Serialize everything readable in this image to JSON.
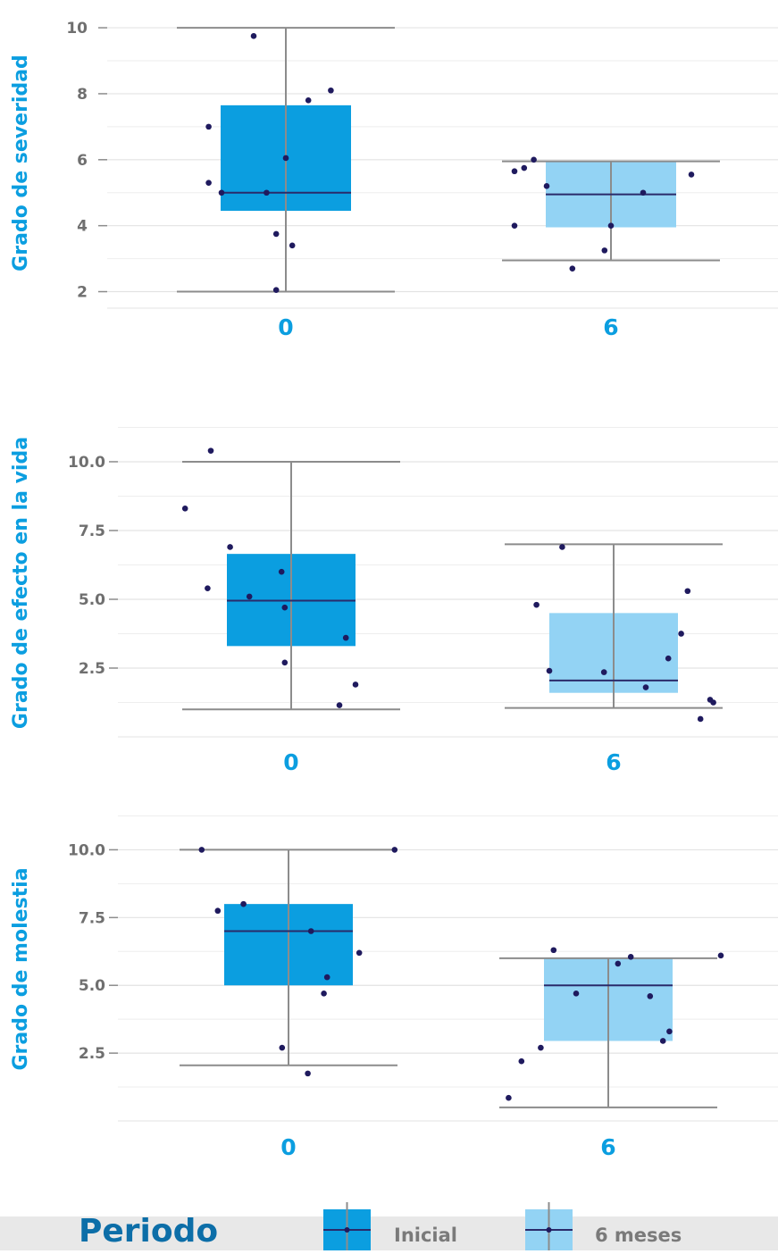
{
  "colors": {
    "inicial": "#0b9ee0",
    "seis_meses": "#93d3f4",
    "dot": "#1f1a5e",
    "median": "#2a2a6a",
    "whisker": "#8c8c8c",
    "grid": "#e3e3e3",
    "axis_label": "#0b9ee0",
    "legend_bar": "#e8e8e8",
    "legend_title": "#0c6ea8"
  },
  "chart_data": [
    {
      "type": "box",
      "ylabel": "Grado de severidad",
      "ylim": [
        1.5,
        10.3
      ],
      "yticks": [
        2,
        4,
        6,
        8,
        10
      ],
      "ytick_labels": [
        "2",
        "4",
        "6",
        "8",
        "10"
      ],
      "minor_ticks": [
        3,
        5,
        7,
        9
      ],
      "categories": [
        "0",
        "6"
      ],
      "boxes": [
        {
          "period": "Inicial",
          "q1": 4.45,
          "median": 5.0,
          "q3": 7.65,
          "whisker_low": 2.0,
          "whisker_high": 10.0,
          "points": [
            [
              -0.24,
              7.0
            ],
            [
              -0.24,
              5.3
            ],
            [
              -0.2,
              5.0
            ],
            [
              -0.1,
              9.75
            ],
            [
              -0.06,
              5.0
            ],
            [
              -0.03,
              3.75
            ],
            [
              0.0,
              6.05
            ],
            [
              0.02,
              3.4
            ],
            [
              -0.03,
              2.05
            ],
            [
              0.07,
              7.8
            ],
            [
              0.14,
              8.1
            ]
          ]
        },
        {
          "period": "6 meses",
          "q1": 3.95,
          "median": 4.95,
          "q3": 5.95,
          "whisker_low": 2.95,
          "whisker_high": 5.95,
          "points": [
            [
              -0.3,
              5.65
            ],
            [
              -0.3,
              4.0
            ],
            [
              -0.27,
              5.75
            ],
            [
              -0.24,
              6.0
            ],
            [
              -0.2,
              5.2
            ],
            [
              -0.12,
              2.7
            ],
            [
              -0.02,
              3.25
            ],
            [
              0.0,
              4.0
            ],
            [
              0.1,
              5.0
            ],
            [
              0.25,
              5.55
            ]
          ]
        }
      ]
    },
    {
      "type": "box",
      "ylabel": "Grado de efecto en la vida",
      "ylim": [
        0.0,
        11.2
      ],
      "yticks": [
        2.5,
        5.0,
        7.5,
        10.0
      ],
      "ytick_labels": [
        "2.5",
        "5.0",
        "7.5",
        "10.0"
      ],
      "minor_ticks": [
        1.25,
        3.75,
        6.25,
        8.75,
        11.25
      ],
      "categories": [
        "0",
        "6"
      ],
      "boxes": [
        {
          "period": "Inicial",
          "q1": 3.3,
          "median": 4.95,
          "q3": 6.65,
          "whisker_low": 1.0,
          "whisker_high": 10.0,
          "points": [
            [
              -0.33,
              8.3
            ],
            [
              -0.25,
              10.4
            ],
            [
              -0.26,
              5.4
            ],
            [
              -0.19,
              6.9
            ],
            [
              -0.13,
              5.1
            ],
            [
              -0.03,
              6.0
            ],
            [
              -0.02,
              4.7
            ],
            [
              -0.02,
              2.7
            ],
            [
              0.17,
              3.6
            ],
            [
              0.15,
              1.15
            ],
            [
              0.2,
              1.9
            ]
          ]
        },
        {
          "period": "6 meses",
          "q1": 1.6,
          "median": 2.05,
          "q3": 4.5,
          "whisker_low": 1.05,
          "whisker_high": 7.0,
          "points": [
            [
              -0.24,
              4.8
            ],
            [
              -0.2,
              2.4
            ],
            [
              -0.16,
              6.9
            ],
            [
              -0.03,
              2.35
            ],
            [
              0.1,
              1.8
            ],
            [
              0.17,
              2.85
            ],
            [
              0.21,
              3.75
            ],
            [
              0.23,
              5.3
            ],
            [
              0.27,
              0.65
            ],
            [
              0.3,
              1.35
            ],
            [
              0.31,
              1.25
            ]
          ]
        }
      ]
    },
    {
      "type": "box",
      "ylabel": "Grado de molestia",
      "ylim": [
        0.0,
        11.2
      ],
      "yticks": [
        2.5,
        5.0,
        7.5,
        10.0
      ],
      "ytick_labels": [
        "2.5",
        "5.0",
        "7.5",
        "10.0"
      ],
      "minor_ticks": [
        1.25,
        3.75,
        6.25,
        8.75,
        11.25
      ],
      "categories": [
        "0",
        "6"
      ],
      "boxes": [
        {
          "period": "Inicial",
          "q1": 5.0,
          "median": 7.0,
          "q3": 8.0,
          "whisker_low": 2.05,
          "whisker_high": 10.0,
          "points": [
            [
              -0.27,
              10.0
            ],
            [
              -0.22,
              7.75
            ],
            [
              -0.14,
              8.0
            ],
            [
              -0.02,
              2.7
            ],
            [
              0.06,
              1.75
            ],
            [
              0.07,
              7.0
            ],
            [
              0.11,
              4.7
            ],
            [
              0.12,
              5.3
            ],
            [
              0.22,
              6.2
            ],
            [
              0.33,
              10.0
            ]
          ]
        },
        {
          "period": "6 meses",
          "q1": 2.95,
          "median": 5.0,
          "q3": 6.0,
          "whisker_low": 0.5,
          "whisker_high": 6.0,
          "points": [
            [
              -0.31,
              0.85
            ],
            [
              -0.27,
              2.2
            ],
            [
              -0.21,
              2.7
            ],
            [
              -0.17,
              6.3
            ],
            [
              -0.1,
              4.7
            ],
            [
              0.03,
              5.8
            ],
            [
              0.07,
              6.05
            ],
            [
              0.13,
              4.6
            ],
            [
              0.17,
              2.95
            ],
            [
              0.19,
              3.3
            ],
            [
              0.35,
              6.1
            ]
          ]
        }
      ]
    }
  ],
  "legend": {
    "title": "Periodo",
    "items": [
      {
        "label": "Inicial"
      },
      {
        "label": "6 meses"
      }
    ]
  }
}
